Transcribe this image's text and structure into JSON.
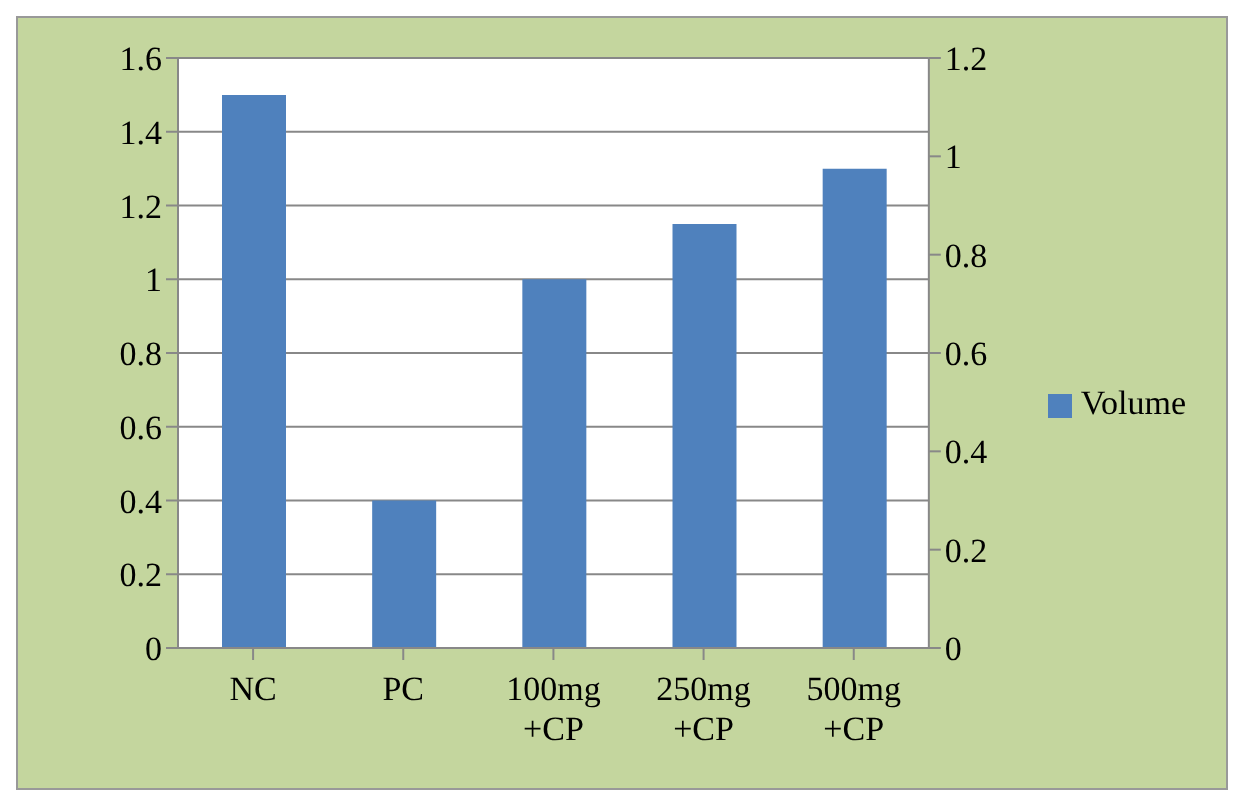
{
  "chart_data": {
    "type": "bar",
    "categories": [
      "NC",
      "PC",
      "100mg +CP",
      "250mg +CP",
      "500mg +CP"
    ],
    "series": [
      {
        "name": "Volume",
        "color": "#4f81bd",
        "values": [
          1.5,
          0.4,
          1.0,
          1.15,
          1.3
        ]
      }
    ],
    "ylim": [
      0,
      1.6
    ],
    "yticks": [
      0,
      0.2,
      0.4,
      0.6,
      0.8,
      1,
      1.2,
      1.4,
      1.6
    ],
    "y2lim": [
      0,
      1.2
    ],
    "y2ticks": [
      0,
      0.2,
      0.4,
      0.6,
      0.8,
      1,
      1.2
    ],
    "grid": "y",
    "legend": "right"
  }
}
